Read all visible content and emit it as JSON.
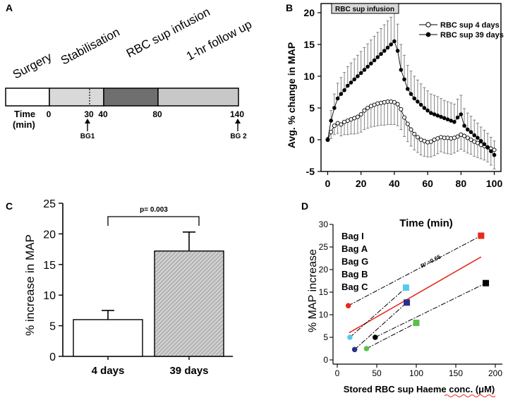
{
  "colors": {
    "segment_surgery": "#ffffff",
    "segment_stabilisation": "#d9d9d9",
    "segment_infusion": "#6f6f6f",
    "segment_followup": "#c8c8c8",
    "bar_fill_4d": "#ffffff",
    "bar_fill_39d": "#bdbdbd",
    "infusion_box": "#d9d9d9",
    "regression_line": "#e8291c",
    "bag_i": "#e8291c",
    "bag_a": "#5bc8e8",
    "bag_g": "#2b2f8a",
    "bag_b": "#000000",
    "bag_c": "#5cbf4a"
  },
  "panel_a": {
    "label": "A",
    "phases": [
      "Surgery",
      "Stabilisation",
      "RBC sup infusion",
      "1-hr follow up"
    ],
    "time_label_line1": "Time",
    "time_label_line2": "(min)",
    "ticks": [
      {
        "label": "0",
        "t": 0
      },
      {
        "label": "30",
        "t": 30
      },
      {
        "label": "40",
        "t": 40
      },
      {
        "label": "80",
        "t": 80
      },
      {
        "label": "140",
        "t": 140
      }
    ],
    "blood_gas": [
      {
        "label": "BG1",
        "t": 30
      },
      {
        "label": "BG 2",
        "t": 140
      }
    ]
  },
  "panel_b": {
    "label": "B",
    "annotation": "RBC sup infusion",
    "chart_data": {
      "type": "line",
      "title": "",
      "xlabel": "",
      "ylabel": "Avg. % change in MAP",
      "xlim": [
        -4,
        104
      ],
      "ylim": [
        -5,
        20
      ],
      "xticks": [
        "0",
        "20",
        "40",
        "60",
        "80",
        "100"
      ],
      "yticks": [
        "-5",
        "0",
        "5",
        "10",
        "15",
        "20"
      ],
      "x": [
        0,
        2,
        4,
        6,
        8,
        10,
        12,
        14,
        16,
        18,
        20,
        22,
        24,
        26,
        28,
        30,
        32,
        34,
        36,
        38,
        40,
        42,
        44,
        46,
        48,
        50,
        52,
        54,
        56,
        58,
        60,
        62,
        64,
        66,
        68,
        70,
        72,
        74,
        76,
        78,
        80,
        82,
        84,
        86,
        88,
        90,
        92,
        94,
        96,
        98,
        100
      ],
      "series": [
        {
          "name": "RBC sup 4 days",
          "marker": "open-circle",
          "values": [
            0,
            1.2,
            2.2,
            2.6,
            2.4,
            2.8,
            3.0,
            3.2,
            3.4,
            3.6,
            4.0,
            4.6,
            5.0,
            5.3,
            5.5,
            5.7,
            5.8,
            5.9,
            6.0,
            6.0,
            5.9,
            5.6,
            4.8,
            3.5,
            2.5,
            1.6,
            0.9,
            0.4,
            0.0,
            -0.2,
            -0.4,
            -0.3,
            0.0,
            0.2,
            0.4,
            0.3,
            0.3,
            0.2,
            0.3,
            0.5,
            0.8,
            0.6,
            0.3,
            0.0,
            -0.3,
            -0.5,
            -0.8,
            -1.0,
            -1.2,
            -1.4,
            -1.6
          ],
          "errors": [
            0.3,
            1.0,
            1.4,
            1.6,
            1.8,
            2.0,
            2.2,
            2.3,
            2.5,
            2.6,
            2.8,
            3.0,
            3.2,
            3.3,
            3.4,
            3.5,
            3.5,
            3.6,
            3.6,
            3.6,
            3.5,
            3.4,
            3.2,
            3.0,
            2.8,
            2.6,
            2.5,
            2.4,
            2.4,
            2.4,
            2.3,
            2.4,
            2.5,
            2.4,
            2.3,
            2.4,
            2.5,
            2.5,
            2.4,
            2.3,
            2.3,
            2.4,
            2.4,
            2.3,
            2.3,
            2.3,
            2.2,
            2.2,
            2.3,
            2.6,
            3.0
          ]
        },
        {
          "name": "RBC sup 39 days",
          "marker": "filled-circle",
          "values": [
            0,
            3.0,
            5.0,
            6.5,
            7.2,
            7.8,
            8.5,
            9.0,
            9.5,
            10.0,
            10.5,
            11.0,
            11.5,
            12.0,
            12.5,
            13.0,
            13.5,
            14.0,
            14.5,
            15.0,
            15.5,
            14.0,
            11.0,
            9.5,
            8.0,
            7.2,
            6.5,
            6.0,
            5.5,
            5.0,
            4.6,
            4.2,
            4.0,
            3.8,
            3.6,
            3.4,
            3.2,
            3.0,
            2.8,
            3.5,
            4.0,
            2.2,
            1.6,
            1.2,
            0.7,
            0.3,
            -0.2,
            -0.7,
            -1.2,
            -1.8,
            -2.4
          ],
          "errors": [
            0.4,
            1.6,
            2.2,
            2.4,
            2.6,
            2.8,
            3.0,
            3.1,
            3.2,
            3.3,
            3.4,
            3.5,
            3.6,
            3.7,
            3.8,
            3.9,
            4.0,
            4.1,
            4.2,
            4.3,
            4.4,
            4.2,
            4.0,
            3.8,
            3.7,
            3.6,
            3.5,
            3.4,
            3.3,
            3.2,
            3.1,
            3.0,
            3.0,
            3.0,
            2.9,
            2.8,
            2.8,
            2.8,
            2.8,
            2.9,
            3.0,
            2.7,
            2.6,
            2.5,
            2.4,
            2.3,
            2.2,
            2.2,
            2.2,
            2.2,
            2.2
          ]
        }
      ],
      "legend": "top-right"
    }
  },
  "panel_c": {
    "label": "C",
    "annotation": "p= 0.003",
    "chart_data": {
      "type": "bar",
      "title": "",
      "xlabel": "",
      "ylabel": "% increase in MAP",
      "categories": [
        "4 days",
        "39 days"
      ],
      "values": [
        6.0,
        17.2
      ],
      "errors": [
        1.5,
        3.1
      ],
      "ylim": [
        0,
        25
      ],
      "yticks": [
        "0",
        "5",
        "10",
        "15",
        "20",
        "25"
      ]
    }
  },
  "panel_d": {
    "label": "D",
    "r2": "R² =0.65",
    "legend": [
      "Bag I",
      "Bag A",
      "Bag G",
      "Bag B",
      "Bag C"
    ],
    "chart_data": {
      "type": "scatter",
      "title": "Time (min)",
      "xlabel": "Stored RBC sup Haeme conc. (μM)",
      "ylabel": "% MAP increase",
      "xlim": [
        0,
        200
      ],
      "ylim": [
        0,
        30
      ],
      "xticks": [
        "0",
        "50",
        "100",
        "150",
        "200"
      ],
      "yticks": [
        "0",
        "5",
        "10",
        "15",
        "20",
        "25",
        "30"
      ],
      "series": [
        {
          "name": "Bag I",
          "points": [
            [
              14,
              12
            ],
            [
              182,
              27.5
            ]
          ]
        },
        {
          "name": "Bag A",
          "points": [
            [
              16,
              5
            ],
            [
              87,
              16
            ]
          ]
        },
        {
          "name": "Bag G",
          "points": [
            [
              22,
              2.3
            ],
            [
              88,
              12.7
            ]
          ]
        },
        {
          "name": "Bag B",
          "points": [
            [
              48,
              5
            ],
            [
              188,
              17
            ]
          ]
        },
        {
          "name": "Bag C",
          "points": [
            [
              37,
              2.5
            ],
            [
              100,
              8.2
            ]
          ]
        }
      ],
      "regression": [
        [
          15,
          6
        ],
        [
          182,
          22.8
        ]
      ]
    }
  }
}
